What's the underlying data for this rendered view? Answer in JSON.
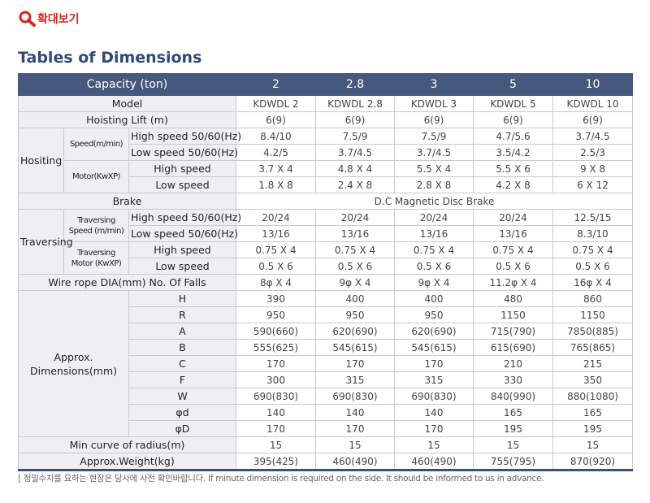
{
  "zoom": "확대보기",
  "title": "Tables of Dimensions",
  "header": {
    "label": "Capacity (ton)",
    "values": [
      "2",
      "2.8",
      "3",
      "5",
      "10"
    ]
  },
  "model": {
    "label": "Model",
    "values": [
      "KDWDL 2",
      "KDWDL 2.8",
      "KDWDL 3",
      "KDWDL 5",
      "KDWDL 10"
    ]
  },
  "lift": {
    "label": "Hoisting Lift (m)",
    "values": [
      "6(9)",
      "6(9)",
      "6(9)",
      "6(9)",
      "6(9)"
    ]
  },
  "hoisting": {
    "label": "Hositing",
    "groups": [
      {
        "label": "Speed(m/min)",
        "rows": [
          {
            "label": "High speed 50/60(Hz)",
            "values": [
              "8.4/10",
              "7.5/9",
              "7.5/9",
              "4.7/5.6",
              "3.7/4.5"
            ]
          },
          {
            "label": "Low speed 50/60(Hz)",
            "values": [
              "4.2/5",
              "3.7/4.5",
              "3.7/4.5",
              "3.5/4.2",
              "2.5/3"
            ]
          }
        ]
      },
      {
        "label": "Motor(KwXP)",
        "rows": [
          {
            "label": "High speed",
            "values": [
              "3.7 X 4",
              "4.8 X 4",
              "5.5 X 4",
              "5.5 X 6",
              "9 X 8"
            ]
          },
          {
            "label": "Low speed",
            "values": [
              "1.8 X 8",
              "2.4 X 8",
              "2.8 X 8",
              "4.2 X 8",
              "6 X 12"
            ]
          }
        ]
      }
    ]
  },
  "brake": {
    "label": "Brake",
    "value": "D.C Magnetic Disc Brake"
  },
  "traversing": {
    "label": "Traversing",
    "groups": [
      {
        "label": "Traversing Speed (m/min)",
        "rows": [
          {
            "label": "High speed 50/60(Hz)",
            "values": [
              "20/24",
              "20/24",
              "20/24",
              "20/24",
              "12.5/15"
            ]
          },
          {
            "label": "Low speed 50/60(Hz)",
            "values": [
              "13/16",
              "13/16",
              "13/16",
              "13/16",
              "8.3/10"
            ]
          }
        ]
      },
      {
        "label": "Traversing Motor (KwXP)",
        "rows": [
          {
            "label": "High speed",
            "values": [
              "0.75 X 4",
              "0.75 X 4",
              "0.75 X 4",
              "0.75 X 4",
              "0.75 X 4"
            ]
          },
          {
            "label": "Low speed",
            "values": [
              "0.5 X 6",
              "0.5 X 6",
              "0.5 X 6",
              "0.5 X 6",
              "0.5 X 6"
            ]
          }
        ]
      }
    ]
  },
  "wire": {
    "label": "Wire rope DIA(mm) No. Of Falls",
    "values": [
      "8φ X 4",
      "9φ X 4",
      "9φ X 4",
      "11.2φ X 4",
      "16φ X 4"
    ]
  },
  "dimensions": {
    "label": "Approx. Dimensions(mm)",
    "rows": [
      {
        "label": "H",
        "values": [
          "390",
          "400",
          "400",
          "480",
          "860"
        ]
      },
      {
        "label": "R",
        "values": [
          "950",
          "950",
          "950",
          "1150",
          "1150"
        ]
      },
      {
        "label": "A",
        "values": [
          "590(660)",
          "620(690)",
          "620(690)",
          "715(790)",
          "7850(885)"
        ]
      },
      {
        "label": "B",
        "values": [
          "555(625)",
          "545(615)",
          "545(615)",
          "615(690)",
          "765(865)"
        ]
      },
      {
        "label": "C",
        "values": [
          "170",
          "170",
          "170",
          "210",
          "215"
        ]
      },
      {
        "label": "F",
        "values": [
          "300",
          "315",
          "315",
          "330",
          "350"
        ]
      },
      {
        "label": "W",
        "values": [
          "690(830)",
          "690(830)",
          "690(830)",
          "840(990)",
          "880(1080)"
        ]
      },
      {
        "label": "φd",
        "values": [
          "140",
          "140",
          "140",
          "165",
          "165"
        ]
      },
      {
        "label": "φD",
        "values": [
          "170",
          "170",
          "170",
          "195",
          "195"
        ]
      }
    ]
  },
  "curve": {
    "label": "Min curve of radius(m)",
    "values": [
      "15",
      "15",
      "15",
      "15",
      "15"
    ]
  },
  "weight": {
    "label": "Approx.Weight(kg)",
    "values": [
      "395(425)",
      "460(490)",
      "460(490)",
      "755(795)",
      "870(920)"
    ]
  },
  "note": "[ 정밀수치를 요하는 현장은 당사에 사전 확인바랍니다. If minute dimension is required on the side. It should be informed to us in advance."
}
